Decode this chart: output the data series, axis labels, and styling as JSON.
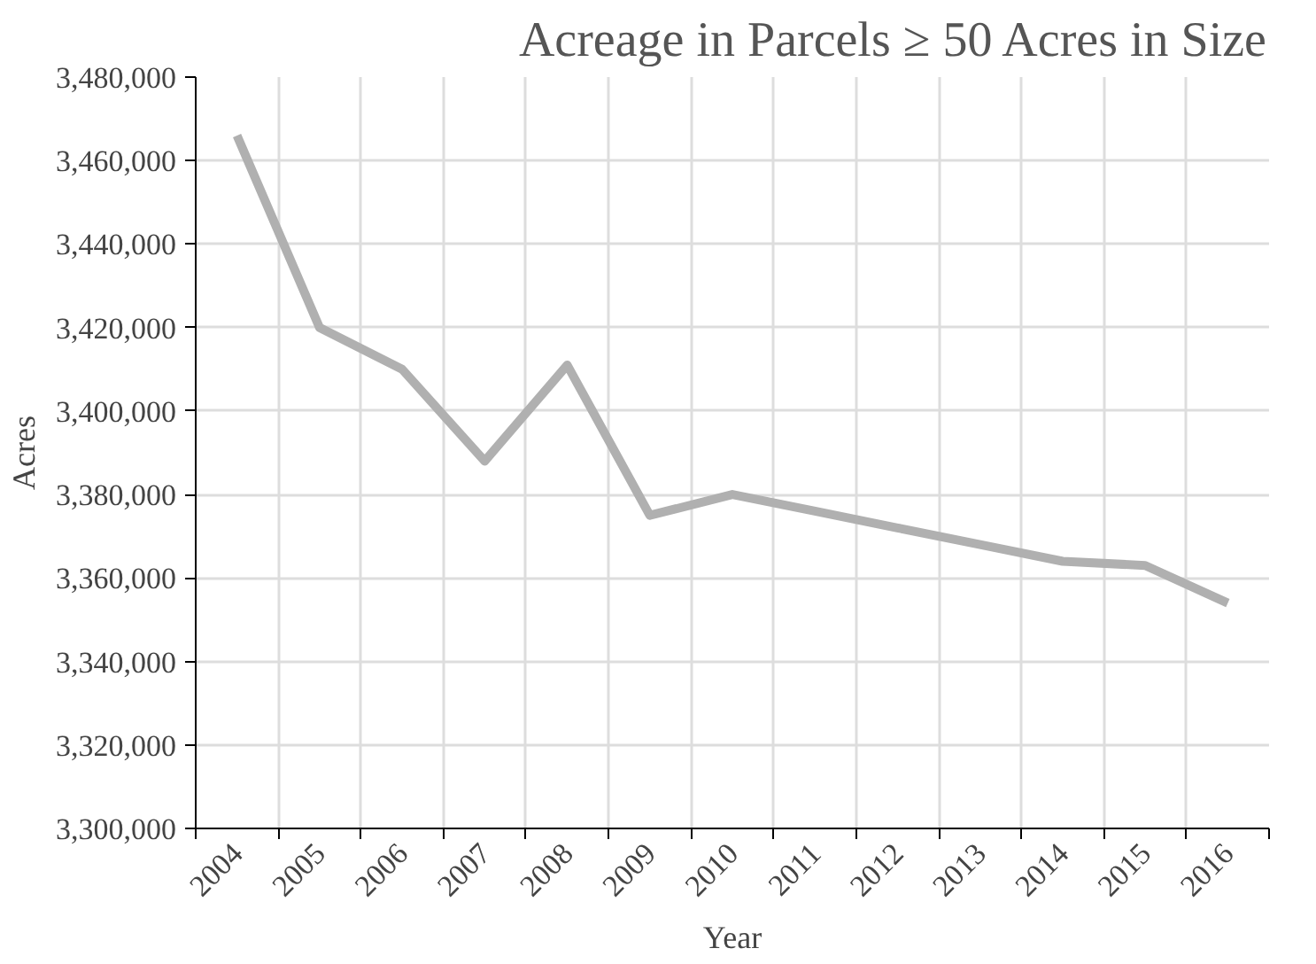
{
  "chart_data": {
    "type": "line",
    "title": "Acreage in Parcels ≥ 50 Acres in Size",
    "xlabel": "Year",
    "ylabel": "Acres",
    "categories": [
      "2004",
      "2005",
      "2006",
      "2007",
      "2008",
      "2009",
      "2010",
      "2011",
      "2012",
      "2013",
      "2014",
      "2015",
      "2016"
    ],
    "series": [
      {
        "color": "#b0b0b0",
        "values": [
          3466000,
          3420000,
          3410000,
          3388000,
          3411000,
          3375000,
          3380000,
          3376000,
          3372000,
          3368000,
          3364000,
          3363000,
          3354000
        ]
      }
    ],
    "ylim": [
      3300000,
      3480000
    ],
    "yticks": [
      {
        "value": 3300000,
        "label": "3,300,000"
      },
      {
        "value": 3320000,
        "label": "3,320,000"
      },
      {
        "value": 3340000,
        "label": "3,340,000"
      },
      {
        "value": 3360000,
        "label": "3,360,000"
      },
      {
        "value": 3380000,
        "label": "3,380,000"
      },
      {
        "value": 3400000,
        "label": "3,400,000"
      },
      {
        "value": 3420000,
        "label": "3,420,000"
      },
      {
        "value": 3440000,
        "label": "3,440,000"
      },
      {
        "value": 3460000,
        "label": "3,460,000"
      },
      {
        "value": 3480000,
        "label": "3,480,000"
      }
    ],
    "grid": true,
    "line_style": "solid"
  }
}
